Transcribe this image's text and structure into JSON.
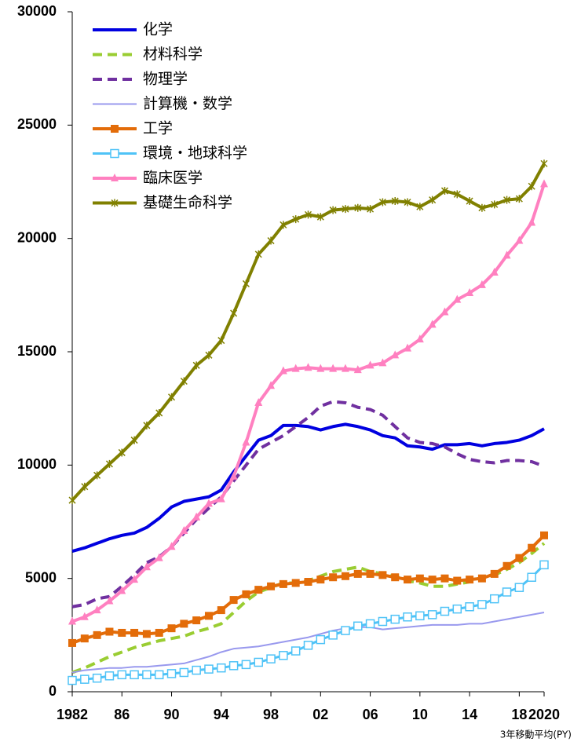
{
  "chart_data": {
    "type": "line",
    "x": [
      1982,
      1983,
      1984,
      1985,
      1986,
      1987,
      1988,
      1989,
      1990,
      1991,
      1992,
      1993,
      1994,
      1995,
      1996,
      1997,
      1998,
      1999,
      2000,
      2001,
      2002,
      2003,
      2004,
      2005,
      2006,
      2007,
      2008,
      2009,
      2010,
      2011,
      2012,
      2013,
      2014,
      2015,
      2016,
      2017,
      2018,
      2019,
      2020
    ],
    "xlim": [
      1982,
      2020
    ],
    "xticks": [
      1982,
      {
        "value": 1986,
        "label": "86"
      },
      {
        "value": 1990,
        "label": "90"
      },
      {
        "value": 1994,
        "label": "94"
      },
      {
        "value": 1998,
        "label": "98"
      },
      {
        "value": 2002,
        "label": "02"
      },
      {
        "value": 2006,
        "label": "06"
      },
      {
        "value": 2010,
        "label": "10"
      },
      {
        "value": 2014,
        "label": "14"
      },
      {
        "value": 2018,
        "label": "18"
      },
      2020
    ],
    "ylim": [
      0,
      30000
    ],
    "yticks": [
      0,
      5000,
      10000,
      15000,
      20000,
      25000,
      30000
    ],
    "note": "3年移動平均(PY)",
    "legend": "upper left",
    "series": [
      {
        "name": "化学",
        "color": "#0000e0",
        "linestyle": "solid",
        "marker": "none",
        "width": 4,
        "values": [
          6200,
          6350,
          6550,
          6750,
          6900,
          7000,
          7250,
          7650,
          8150,
          8400,
          8500,
          8600,
          8900,
          9700,
          10400,
          11100,
          11300,
          11750,
          11750,
          11700,
          11550,
          11700,
          11800,
          11700,
          11550,
          11300,
          11200,
          10850,
          10800,
          10700,
          10900,
          10900,
          10950,
          10850,
          10950,
          11000,
          11100,
          11300,
          11600
        ]
      },
      {
        "name": "材料科学",
        "color": "#9acd32",
        "linestyle": "dashed",
        "marker": "none",
        "width": 4,
        "values": [
          850,
          1050,
          1300,
          1550,
          1750,
          1950,
          2100,
          2250,
          2350,
          2450,
          2650,
          2800,
          3000,
          3500,
          4000,
          4400,
          4600,
          4800,
          4800,
          4900,
          5100,
          5300,
          5400,
          5500,
          5300,
          5200,
          5100,
          4900,
          4800,
          4650,
          4650,
          4750,
          4850,
          5050,
          5150,
          5400,
          5700,
          6100,
          6550
        ]
      },
      {
        "name": "物理学",
        "color": "#7030a0",
        "linestyle": "dashed",
        "marker": "none",
        "width": 4,
        "values": [
          3750,
          3850,
          4100,
          4200,
          4650,
          5150,
          5700,
          5950,
          6400,
          7000,
          7600,
          8100,
          8600,
          9300,
          10000,
          10700,
          11000,
          11300,
          11700,
          12100,
          12600,
          12800,
          12750,
          12550,
          12450,
          12200,
          11700,
          11200,
          11000,
          10950,
          10800,
          10500,
          10250,
          10150,
          10100,
          10200,
          10200,
          10150,
          9950
        ]
      },
      {
        "name": "計算機・数学",
        "color": "#9999ee",
        "linestyle": "solid",
        "marker": "none",
        "width": 2,
        "values": [
          850,
          950,
          1000,
          1050,
          1050,
          1100,
          1100,
          1150,
          1200,
          1250,
          1400,
          1550,
          1750,
          1900,
          1950,
          2000,
          2100,
          2200,
          2300,
          2400,
          2550,
          2700,
          2800,
          2850,
          2850,
          2750,
          2800,
          2850,
          2900,
          2950,
          2950,
          2950,
          3000,
          3000,
          3100,
          3200,
          3300,
          3400,
          3500
        ]
      },
      {
        "name": "工学",
        "color": "#e36c09",
        "linestyle": "solid",
        "marker": "square",
        "width": 4,
        "values": [
          2150,
          2350,
          2500,
          2650,
          2600,
          2600,
          2550,
          2600,
          2800,
          3000,
          3150,
          3350,
          3600,
          4050,
          4300,
          4500,
          4650,
          4750,
          4800,
          4850,
          4950,
          5050,
          5100,
          5200,
          5200,
          5150,
          5050,
          4950,
          5000,
          4950,
          5000,
          4900,
          4950,
          5000,
          5200,
          5550,
          5900,
          6350,
          6900
        ]
      },
      {
        "name": "環境・地球科学",
        "color": "#4fc3f7",
        "linestyle": "solid",
        "marker": "open-square",
        "width": 3,
        "values": [
          500,
          550,
          600,
          700,
          750,
          750,
          750,
          750,
          800,
          850,
          950,
          1000,
          1050,
          1150,
          1200,
          1300,
          1450,
          1600,
          1800,
          2050,
          2300,
          2500,
          2700,
          2900,
          3000,
          3100,
          3200,
          3300,
          3350,
          3400,
          3550,
          3650,
          3750,
          3850,
          4100,
          4400,
          4600,
          5050,
          5600
        ]
      },
      {
        "name": "臨床医学",
        "color": "#ff80c0",
        "linestyle": "solid",
        "marker": "triangle",
        "width": 4,
        "values": [
          3100,
          3300,
          3600,
          4000,
          4450,
          4950,
          5500,
          5900,
          6400,
          7100,
          7700,
          8300,
          8500,
          9500,
          11000,
          12750,
          13500,
          14150,
          14250,
          14300,
          14250,
          14250,
          14250,
          14200,
          14400,
          14500,
          14850,
          15150,
          15550,
          16200,
          16750,
          17300,
          17600,
          17950,
          18500,
          19250,
          19900,
          20700,
          22400
        ]
      },
      {
        "name": "基礎生命科学",
        "color": "#808000",
        "linestyle": "solid",
        "marker": "x",
        "width": 4,
        "values": [
          8450,
          9050,
          9550,
          10050,
          10550,
          11100,
          11750,
          12300,
          13000,
          13700,
          14400,
          14850,
          15500,
          16700,
          18000,
          19300,
          19900,
          20600,
          20850,
          21050,
          20950,
          21250,
          21300,
          21350,
          21300,
          21600,
          21650,
          21600,
          21400,
          21700,
          22100,
          21950,
          21650,
          21350,
          21500,
          21700,
          21750,
          22300,
          23300
        ]
      }
    ]
  }
}
